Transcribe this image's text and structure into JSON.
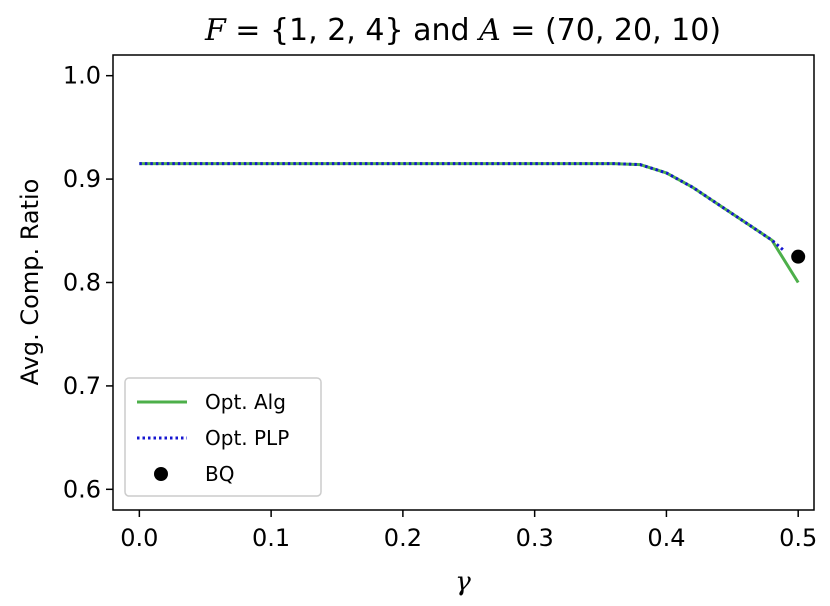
{
  "chart_data": {
    "type": "line",
    "title": "F = {1, 2, 4} and A = (70, 20, 10)",
    "title_parts": [
      {
        "text": "F",
        "math": true
      },
      {
        "text": " = {1, 2, 4} and ",
        "math": false
      },
      {
        "text": "A",
        "math": true
      },
      {
        "text": " = (70, 20, 10)",
        "math": false
      }
    ],
    "xlabel": "γ",
    "ylabel": "Avg. Comp. Ratio",
    "xlim": [
      -0.02,
      0.512
    ],
    "ylim": [
      0.58,
      1.02
    ],
    "xticks": [
      0.0,
      0.1,
      0.2,
      0.3,
      0.4,
      0.5
    ],
    "xtick_labels": [
      "0.0",
      "0.1",
      "0.2",
      "0.3",
      "0.4",
      "0.5"
    ],
    "yticks": [
      0.6,
      0.7,
      0.8,
      0.9,
      1.0
    ],
    "ytick_labels": [
      "0.6",
      "0.7",
      "0.8",
      "0.9",
      "1.0"
    ],
    "grid": false,
    "legend_position": "lower-left",
    "series": [
      {
        "name": "Opt. Alg",
        "style": "solid",
        "color": "#4daf4a",
        "x": [
          0.0,
          0.36,
          0.38,
          0.4,
          0.42,
          0.44,
          0.46,
          0.48,
          0.5
        ],
        "y": [
          0.915,
          0.915,
          0.914,
          0.906,
          0.892,
          0.875,
          0.858,
          0.841,
          0.8
        ]
      },
      {
        "name": "Opt. PLP",
        "style": "dotted",
        "color": "#1515d0",
        "x": [
          0.0,
          0.36,
          0.38,
          0.4,
          0.42,
          0.44,
          0.46,
          0.48,
          0.49
        ],
        "y": [
          0.915,
          0.915,
          0.914,
          0.906,
          0.892,
          0.875,
          0.858,
          0.841,
          0.83
        ]
      },
      {
        "name": "BQ",
        "style": "marker",
        "color": "#000000",
        "x": [
          0.5
        ],
        "y": [
          0.825
        ]
      }
    ]
  }
}
